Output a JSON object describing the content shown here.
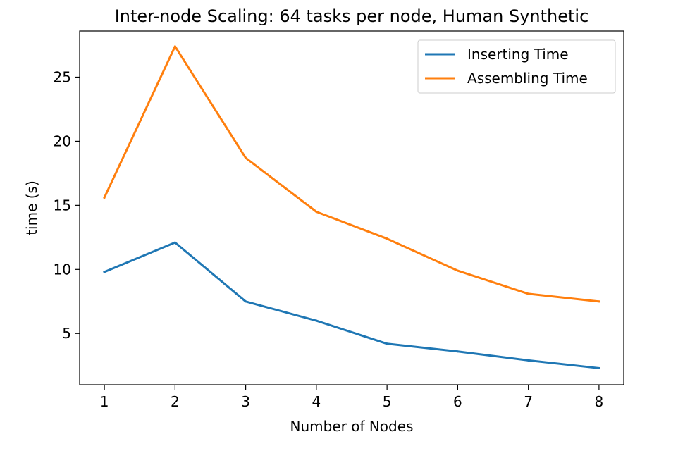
{
  "chart_data": {
    "type": "line",
    "title": "Inter-node Scaling: 64 tasks per node, Human Synthetic",
    "xlabel": "Number of Nodes",
    "ylabel": "time (s)",
    "x": [
      1,
      2,
      3,
      4,
      5,
      6,
      7,
      8
    ],
    "xticks": [
      1,
      2,
      3,
      4,
      5,
      6,
      7,
      8
    ],
    "yticks": [
      5,
      10,
      15,
      20,
      25
    ],
    "xlim": [
      0.65,
      8.35
    ],
    "ylim": [
      1.0,
      28.6
    ],
    "grid": false,
    "legend_position": "upper-right",
    "series": [
      {
        "name": "Inserting Time",
        "color": "#1f77b4",
        "values": [
          9.8,
          12.1,
          7.5,
          6.0,
          4.2,
          3.6,
          2.9,
          2.3
        ]
      },
      {
        "name": "Assembling Time",
        "color": "#ff7f0e",
        "values": [
          15.6,
          27.4,
          18.7,
          14.5,
          12.4,
          9.9,
          8.1,
          7.5
        ]
      }
    ]
  }
}
